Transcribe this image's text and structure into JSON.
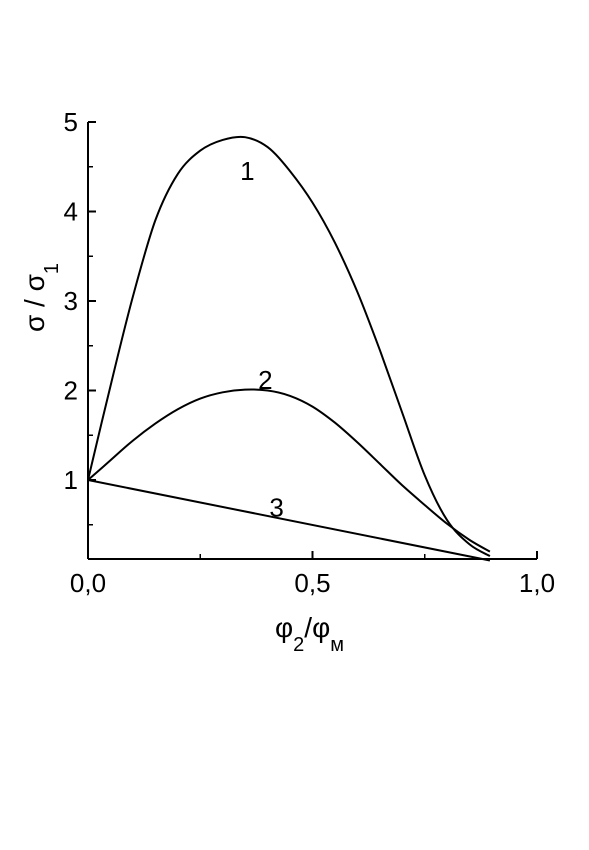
{
  "chart_data": {
    "type": "line",
    "xlabel": {
      "base": "φ",
      "sub1": "2",
      "slash": "/",
      "base2": "φ",
      "sub2": "м"
    },
    "ylabel": {
      "base": "σ / σ",
      "sub": "1"
    },
    "xlim": [
      0,
      1.0
    ],
    "ylim": [
      0.1,
      5
    ],
    "x_ticks": [
      {
        "value": 0,
        "label": "0,0"
      },
      {
        "value": 0.5,
        "label": "0,5"
      },
      {
        "value": 1.0,
        "label": "1,0"
      }
    ],
    "x_minor_ticks": [
      0.25,
      0.75
    ],
    "y_ticks": [
      {
        "value": 1,
        "label": "1"
      },
      {
        "value": 2,
        "label": "2"
      },
      {
        "value": 3,
        "label": "3"
      },
      {
        "value": 4,
        "label": "4"
      },
      {
        "value": 5,
        "label": "5"
      }
    ],
    "y_minor_ticks": [
      0.5,
      1.5,
      2.5,
      3.5,
      4.5
    ],
    "grid": false,
    "series": [
      {
        "label": "1",
        "label_at": [
          0.355,
          4.45
        ],
        "x": [
          0,
          0.05,
          0.1,
          0.15,
          0.2,
          0.25,
          0.3,
          0.35,
          0.4,
          0.45,
          0.5,
          0.55,
          0.6,
          0.65,
          0.7,
          0.75,
          0.8,
          0.85,
          0.895
        ],
        "y": [
          1.0,
          2.05,
          3.05,
          3.9,
          4.42,
          4.68,
          4.8,
          4.83,
          4.72,
          4.45,
          4.1,
          3.65,
          3.1,
          2.45,
          1.75,
          1.05,
          0.55,
          0.28,
          0.15
        ]
      },
      {
        "label": "2",
        "label_at": [
          0.395,
          2.12
        ],
        "x": [
          0,
          0.05,
          0.1,
          0.15,
          0.2,
          0.25,
          0.3,
          0.35,
          0.4,
          0.45,
          0.5,
          0.55,
          0.6,
          0.65,
          0.7,
          0.75,
          0.8,
          0.85,
          0.895
        ],
        "y": [
          1.0,
          1.22,
          1.44,
          1.63,
          1.79,
          1.91,
          1.98,
          2.01,
          2.0,
          1.94,
          1.82,
          1.64,
          1.42,
          1.18,
          0.94,
          0.72,
          0.51,
          0.33,
          0.2
        ]
      },
      {
        "label": "3",
        "label_at": [
          0.42,
          0.69
        ],
        "x": [
          0,
          0.895
        ],
        "y": [
          1.0,
          0.1
        ]
      }
    ]
  }
}
